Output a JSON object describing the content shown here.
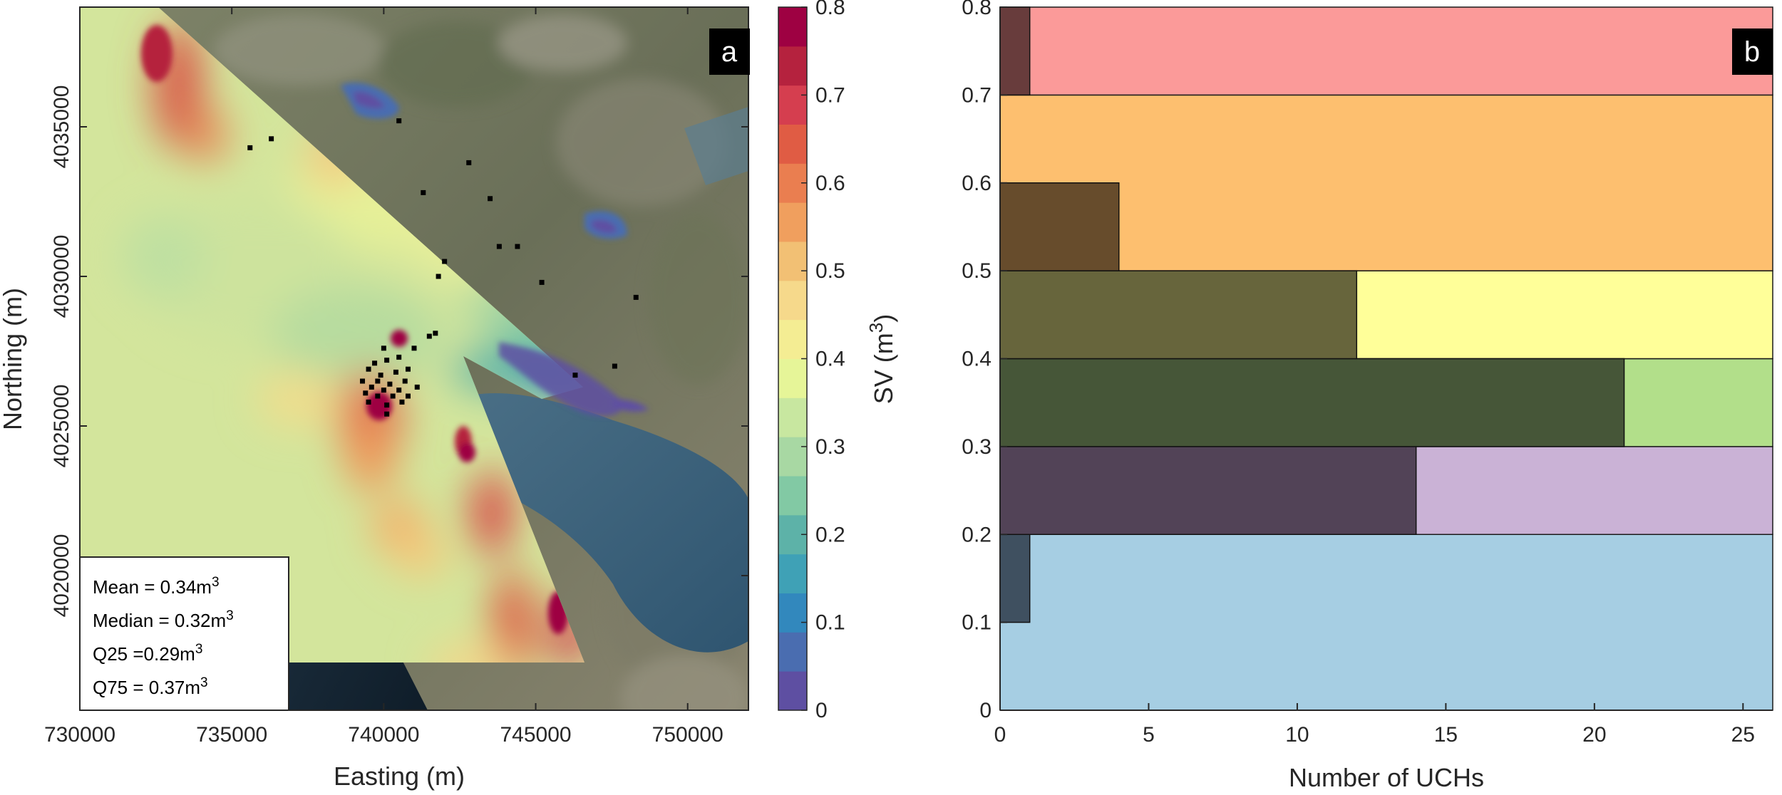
{
  "chart_data": [
    {
      "panel": "a",
      "type": "heatmap",
      "description": "Map of SV over a coastal bay on satellite imagery with sampling points",
      "xlabel": "Easting (m)",
      "ylabel": "Northing (m)",
      "xlim": [
        730000,
        752000
      ],
      "ylim": [
        4015500,
        4039000
      ],
      "xticks": [
        "730000",
        "735000",
        "740000",
        "745000",
        "750000"
      ],
      "xtick_values": [
        730000,
        735000,
        740000,
        745000,
        750000
      ],
      "yticks": [
        "4020000",
        "4025000",
        "4030000",
        "4035000"
      ],
      "ytick_values": [
        4020000,
        4025000,
        4030000,
        4035000
      ],
      "colorbar": {
        "label_main": "SV (m",
        "label_sup": "3",
        "label_close": ")",
        "range": [
          0,
          0.8
        ],
        "ticks": [
          "0",
          "0.1",
          "0.2",
          "0.3",
          "0.4",
          "0.5",
          "0.6",
          "0.7",
          "0.8"
        ],
        "colors": [
          "#5e4fa2",
          "#4a6db0",
          "#3288bd",
          "#3fa1b6",
          "#5db2a8",
          "#82c9a4",
          "#a8d8a3",
          "#c8e7a0",
          "#e6f598",
          "#f4ed93",
          "#f6d98b",
          "#f2c074",
          "#f09f5e",
          "#ea7e50",
          "#e05c44",
          "#d53e4f",
          "#b5223e",
          "#9e0142"
        ]
      },
      "stats": [
        {
          "label": "Mean = 0.34m",
          "sup": "3"
        },
        {
          "label": "Median = 0.32m",
          "sup": "3"
        },
        {
          "label": "Q25 =0.29m",
          "sup": "3"
        },
        {
          "label": "Q75 = 0.37m",
          "sup": "3"
        }
      ],
      "sample_points_note": "black square sampling locations clustered near 740000, 4026000"
    },
    {
      "panel": "b",
      "type": "bar",
      "orientation": "horizontal",
      "xlabel": "Number of UCHs",
      "ylabel": "",
      "xlim": [
        0,
        26
      ],
      "ylim": [
        0,
        0.8
      ],
      "xticks": [
        "0",
        "5",
        "10",
        "15",
        "20",
        "25"
      ],
      "xtick_values": [
        0,
        5,
        10,
        15,
        20,
        25
      ],
      "yticks": [
        "0",
        "0.1",
        "0.2",
        "0.3",
        "0.4",
        "0.5",
        "0.6",
        "0.7",
        "0.8"
      ],
      "ytick_values": [
        0,
        0.1,
        0.2,
        0.3,
        0.4,
        0.5,
        0.6,
        0.7,
        0.8
      ],
      "background_bands": [
        {
          "from": 0.0,
          "to": 0.2,
          "color": "#a6cee3"
        },
        {
          "from": 0.2,
          "to": 0.3,
          "color": "#cab2d6"
        },
        {
          "from": 0.3,
          "to": 0.4,
          "color": "#b2df8a"
        },
        {
          "from": 0.4,
          "to": 0.5,
          "color": "#ffff99"
        },
        {
          "from": 0.5,
          "to": 0.7,
          "color": "#fdbf6f"
        },
        {
          "from": 0.7,
          "to": 0.8,
          "color": "#fb9a99"
        }
      ],
      "bins": [
        {
          "from": 0.1,
          "to": 0.2,
          "count": 1,
          "color": "#3f5060"
        },
        {
          "from": 0.2,
          "to": 0.3,
          "count": 14,
          "color": "#524357"
        },
        {
          "from": 0.3,
          "to": 0.4,
          "count": 21,
          "color": "#465638"
        },
        {
          "from": 0.4,
          "to": 0.5,
          "count": 12,
          "color": "#67653c"
        },
        {
          "from": 0.5,
          "to": 0.6,
          "count": 4,
          "color": "#674c2c"
        },
        {
          "from": 0.7,
          "to": 0.8,
          "count": 1,
          "color": "#683c3c"
        }
      ]
    }
  ],
  "labels": {
    "panel_a": "a",
    "panel_b": "b"
  }
}
